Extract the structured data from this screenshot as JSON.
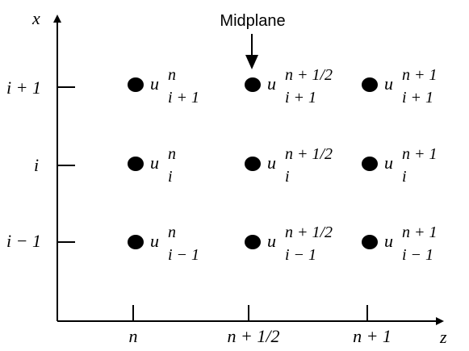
{
  "axes": {
    "x_label": "x",
    "z_label": "z",
    "x_ticks": [
      "i + 1",
      "i",
      "i − 1"
    ],
    "z_ticks": [
      "n",
      "n + 1/2",
      "n + 1"
    ]
  },
  "annotation": {
    "text": "Midplane"
  },
  "grid_nodes": [
    {
      "sup": "n",
      "sub": "i + 1"
    },
    {
      "sup": "n + 1/2",
      "sub": "i + 1"
    },
    {
      "sup": "n + 1",
      "sub": "i + 1"
    },
    {
      "sup": "n",
      "sub": "i"
    },
    {
      "sup": "n + 1/2",
      "sub": "i"
    },
    {
      "sup": "n + 1",
      "sub": "i"
    },
    {
      "sup": "n",
      "sub": "i − 1"
    },
    {
      "sup": "n + 1/2",
      "sub": "i − 1"
    },
    {
      "sup": "n + 1",
      "sub": "i − 1"
    }
  ],
  "node_symbol": "u"
}
